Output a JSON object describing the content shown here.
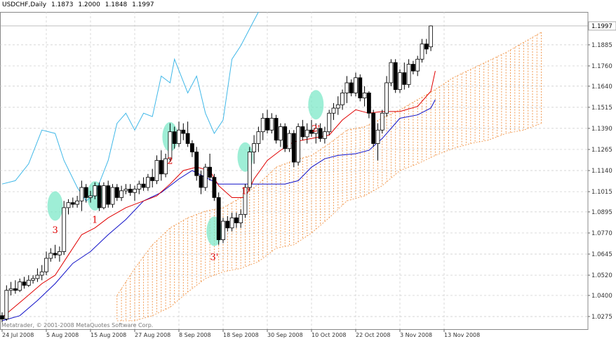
{
  "header": {
    "symbol": "USDCHF,Daily",
    "ohlc": [
      "1.1873",
      "1.2000",
      "1.1848",
      "1.1997"
    ]
  },
  "copyright": "Metatrader, © 2001-2008 MetaQuotes Software Corp.",
  "colors": {
    "background": "#ffffff",
    "grid": "#c8c8c8",
    "candle": "#000000",
    "tenkan": "#e00000",
    "kijun": "#1010c8",
    "chikou": "#40b8e8",
    "cloud": "#f09040",
    "highlight": "#7ee8c8",
    "marker_text": "#e00000"
  },
  "chart_data": {
    "type": "candlestick",
    "ylim": [
      1.02,
      1.208
    ],
    "y_ticks": [
      "1.1885",
      "1.1760",
      "1.1640",
      "1.1515",
      "1.1390",
      "1.1265",
      "1.1140",
      "1.1015",
      "1.0895",
      "1.0770",
      "1.0645",
      "1.0520",
      "1.0400",
      "1.0275"
    ],
    "last_price": "1.1997",
    "x_labels": [
      {
        "i": 0,
        "text": "24 Jul 2008"
      },
      {
        "i": 10,
        "text": "5 Aug 2008"
      },
      {
        "i": 20,
        "text": "15 Aug 2008"
      },
      {
        "i": 30,
        "text": "27 Aug 2008"
      },
      {
        "i": 40,
        "text": "8 Sep 2008"
      },
      {
        "i": 50,
        "text": "18 Sep 2008"
      },
      {
        "i": 60,
        "text": "30 Sep 2008"
      },
      {
        "i": 70,
        "text": "10 Oct 2008"
      },
      {
        "i": 80,
        "text": "22 Oct 2008"
      },
      {
        "i": 90,
        "text": "3 Nov 2008"
      },
      {
        "i": 100,
        "text": "13 Nov 2008"
      }
    ],
    "candles": [
      [
        1.028,
        1.03,
        1.024,
        1.026
      ],
      [
        1.026,
        1.046,
        1.025,
        1.043
      ],
      [
        1.043,
        1.048,
        1.04,
        1.044
      ],
      [
        1.044,
        1.049,
        1.041,
        1.043
      ],
      [
        1.043,
        1.05,
        1.042,
        1.048
      ],
      [
        1.048,
        1.051,
        1.044,
        1.046
      ],
      [
        1.046,
        1.052,
        1.045,
        1.049
      ],
      [
        1.049,
        1.052,
        1.047,
        1.05
      ],
      [
        1.05,
        1.056,
        1.048,
        1.052
      ],
      [
        1.052,
        1.058,
        1.049,
        1.054
      ],
      [
        1.054,
        1.066,
        1.052,
        1.062
      ],
      [
        1.062,
        1.068,
        1.06,
        1.065
      ],
      [
        1.065,
        1.07,
        1.062,
        1.064
      ],
      [
        1.064,
        1.069,
        1.06,
        1.066
      ],
      [
        1.066,
        1.096,
        1.064,
        1.092
      ],
      [
        1.092,
        1.097,
        1.088,
        1.095
      ],
      [
        1.095,
        1.098,
        1.092,
        1.094
      ],
      [
        1.094,
        1.099,
        1.092,
        1.096
      ],
      [
        1.096,
        1.108,
        1.09,
        1.104
      ],
      [
        1.104,
        1.106,
        1.095,
        1.098
      ],
      [
        1.098,
        1.102,
        1.095,
        1.099
      ],
      [
        1.099,
        1.107,
        1.097,
        1.105
      ],
      [
        1.105,
        1.107,
        1.09,
        1.092
      ],
      [
        1.092,
        1.107,
        1.091,
        1.105
      ],
      [
        1.105,
        1.108,
        1.092,
        1.094
      ],
      [
        1.094,
        1.106,
        1.092,
        1.104
      ],
      [
        1.104,
        1.106,
        1.096,
        1.098
      ],
      [
        1.098,
        1.105,
        1.096,
        1.102
      ],
      [
        1.102,
        1.106,
        1.1,
        1.103
      ],
      [
        1.103,
        1.106,
        1.099,
        1.101
      ],
      [
        1.101,
        1.105,
        1.096,
        1.103
      ],
      [
        1.103,
        1.108,
        1.1,
        1.106
      ],
      [
        1.106,
        1.11,
        1.102,
        1.104
      ],
      [
        1.104,
        1.112,
        1.102,
        1.11
      ],
      [
        1.11,
        1.115,
        1.104,
        1.108
      ],
      [
        1.108,
        1.123,
        1.106,
        1.12
      ],
      [
        1.12,
        1.126,
        1.108,
        1.112
      ],
      [
        1.112,
        1.124,
        1.11,
        1.121
      ],
      [
        1.121,
        1.142,
        1.119,
        1.137
      ],
      [
        1.137,
        1.14,
        1.127,
        1.13
      ],
      [
        1.13,
        1.143,
        1.128,
        1.138
      ],
      [
        1.138,
        1.142,
        1.132,
        1.136
      ],
      [
        1.136,
        1.143,
        1.128,
        1.13
      ],
      [
        1.13,
        1.132,
        1.122,
        1.125
      ],
      [
        1.125,
        1.128,
        1.108,
        1.111
      ],
      [
        1.111,
        1.114,
        1.1,
        1.104
      ],
      [
        1.104,
        1.118,
        1.102,
        1.116
      ],
      [
        1.116,
        1.124,
        1.108,
        1.11
      ],
      [
        1.11,
        1.112,
        1.096,
        1.098
      ],
      [
        1.098,
        1.101,
        1.07,
        1.073
      ],
      [
        1.073,
        1.086,
        1.071,
        1.084
      ],
      [
        1.084,
        1.087,
        1.078,
        1.08
      ],
      [
        1.08,
        1.089,
        1.078,
        1.086
      ],
      [
        1.086,
        1.089,
        1.08,
        1.083
      ],
      [
        1.083,
        1.091,
        1.08,
        1.088
      ],
      [
        1.088,
        1.106,
        1.086,
        1.104
      ],
      [
        1.104,
        1.128,
        1.102,
        1.125
      ],
      [
        1.125,
        1.135,
        1.118,
        1.13
      ],
      [
        1.13,
        1.14,
        1.125,
        1.137
      ],
      [
        1.137,
        1.148,
        1.132,
        1.145
      ],
      [
        1.145,
        1.15,
        1.136,
        1.138
      ],
      [
        1.138,
        1.148,
        1.136,
        1.145
      ],
      [
        1.145,
        1.147,
        1.13,
        1.132
      ],
      [
        1.132,
        1.142,
        1.128,
        1.14
      ],
      [
        1.14,
        1.142,
        1.125,
        1.127
      ],
      [
        1.127,
        1.138,
        1.125,
        1.136
      ],
      [
        1.136,
        1.138,
        1.116,
        1.119
      ],
      [
        1.119,
        1.142,
        1.117,
        1.14
      ],
      [
        1.14,
        1.144,
        1.132,
        1.134
      ],
      [
        1.134,
        1.142,
        1.13,
        1.138
      ],
      [
        1.138,
        1.144,
        1.134,
        1.136
      ],
      [
        1.136,
        1.142,
        1.13,
        1.139
      ],
      [
        1.139,
        1.142,
        1.131,
        1.133
      ],
      [
        1.133,
        1.14,
        1.13,
        1.137
      ],
      [
        1.137,
        1.15,
        1.135,
        1.148
      ],
      [
        1.148,
        1.154,
        1.144,
        1.151
      ],
      [
        1.151,
        1.158,
        1.147,
        1.153
      ],
      [
        1.153,
        1.162,
        1.15,
        1.16
      ],
      [
        1.16,
        1.17,
        1.154,
        1.166
      ],
      [
        1.166,
        1.168,
        1.158,
        1.16
      ],
      [
        1.16,
        1.172,
        1.158,
        1.169
      ],
      [
        1.169,
        1.171,
        1.155,
        1.157
      ],
      [
        1.157,
        1.164,
        1.152,
        1.16
      ],
      [
        1.16,
        1.161,
        1.145,
        1.148
      ],
      [
        1.148,
        1.15,
        1.128,
        1.13
      ],
      [
        1.13,
        1.142,
        1.12,
        1.138
      ],
      [
        1.138,
        1.15,
        1.136,
        1.148
      ],
      [
        1.148,
        1.17,
        1.146,
        1.166
      ],
      [
        1.166,
        1.18,
        1.164,
        1.178
      ],
      [
        1.178,
        1.18,
        1.16,
        1.162
      ],
      [
        1.162,
        1.174,
        1.16,
        1.172
      ],
      [
        1.172,
        1.178,
        1.162,
        1.165
      ],
      [
        1.165,
        1.18,
        1.163,
        1.177
      ],
      [
        1.177,
        1.179,
        1.171,
        1.173
      ],
      [
        1.173,
        1.182,
        1.17,
        1.18
      ],
      [
        1.18,
        1.192,
        1.178,
        1.189
      ],
      [
        1.189,
        1.192,
        1.183,
        1.186
      ],
      [
        1.1873,
        1.2,
        1.1848,
        1.1997
      ]
    ],
    "tenkan": [
      [
        0,
        1.027
      ],
      [
        5,
        1.038
      ],
      [
        9,
        1.047
      ],
      [
        12,
        1.052
      ],
      [
        15,
        1.064
      ],
      [
        18,
        1.076
      ],
      [
        21,
        1.08
      ],
      [
        24,
        1.086
      ],
      [
        28,
        1.092
      ],
      [
        32,
        1.096
      ],
      [
        35,
        1.099
      ],
      [
        38,
        1.106
      ],
      [
        41,
        1.114
      ],
      [
        44,
        1.116
      ],
      [
        47,
        1.114
      ],
      [
        49,
        1.105
      ],
      [
        52,
        1.098
      ],
      [
        55,
        1.098
      ],
      [
        57,
        1.109
      ],
      [
        60,
        1.12
      ],
      [
        63,
        1.126
      ],
      [
        66,
        1.131
      ],
      [
        70,
        1.133
      ],
      [
        74,
        1.135
      ],
      [
        77,
        1.144
      ],
      [
        80,
        1.15
      ],
      [
        83,
        1.148
      ],
      [
        86,
        1.149
      ],
      [
        90,
        1.149
      ],
      [
        94,
        1.152
      ],
      [
        97,
        1.161
      ],
      [
        98,
        1.173
      ]
    ],
    "kijun": [
      [
        0,
        1.025
      ],
      [
        4,
        1.028
      ],
      [
        8,
        1.037
      ],
      [
        12,
        1.047
      ],
      [
        16,
        1.059
      ],
      [
        20,
        1.066
      ],
      [
        24,
        1.076
      ],
      [
        28,
        1.085
      ],
      [
        32,
        1.096
      ],
      [
        36,
        1.101
      ],
      [
        40,
        1.109
      ],
      [
        43,
        1.114
      ],
      [
        46,
        1.11
      ],
      [
        49,
        1.106
      ],
      [
        52,
        1.106
      ],
      [
        56,
        1.106
      ],
      [
        60,
        1.106
      ],
      [
        64,
        1.106
      ],
      [
        67,
        1.108
      ],
      [
        70,
        1.116
      ],
      [
        73,
        1.121
      ],
      [
        76,
        1.123
      ],
      [
        80,
        1.124
      ],
      [
        83,
        1.126
      ],
      [
        86,
        1.133
      ],
      [
        90,
        1.145
      ],
      [
        94,
        1.147
      ],
      [
        97,
        1.151
      ],
      [
        98,
        1.156
      ]
    ],
    "chikou": [
      [
        0,
        1.106
      ],
      [
        3,
        1.108
      ],
      [
        6,
        1.118
      ],
      [
        9,
        1.138
      ],
      [
        12,
        1.136
      ],
      [
        14,
        1.12
      ],
      [
        17,
        1.104
      ],
      [
        19,
        1.096
      ],
      [
        21,
        1.1
      ],
      [
        24,
        1.12
      ],
      [
        26,
        1.142
      ],
      [
        28,
        1.148
      ],
      [
        30,
        1.138
      ],
      [
        32,
        1.148
      ],
      [
        34,
        1.146
      ],
      [
        36,
        1.17
      ],
      [
        38,
        1.166
      ],
      [
        39,
        1.18
      ],
      [
        42,
        1.16
      ],
      [
        44,
        1.17
      ],
      [
        46,
        1.148
      ],
      [
        48,
        1.136
      ],
      [
        50,
        1.144
      ],
      [
        52,
        1.18
      ],
      [
        54,
        1.188
      ],
      [
        56,
        1.198
      ],
      [
        58,
        1.208
      ]
    ],
    "cloud": {
      "start": 26,
      "upper": [
        [
          26,
          1.04
        ],
        [
          30,
          1.056
        ],
        [
          34,
          1.07
        ],
        [
          38,
          1.08
        ],
        [
          42,
          1.086
        ],
        [
          46,
          1.09
        ],
        [
          50,
          1.092
        ],
        [
          54,
          1.098
        ],
        [
          58,
          1.106
        ],
        [
          62,
          1.116
        ],
        [
          66,
          1.12
        ],
        [
          70,
          1.123
        ],
        [
          74,
          1.13
        ],
        [
          78,
          1.138
        ],
        [
          82,
          1.14
        ],
        [
          86,
          1.145
        ],
        [
          90,
          1.15
        ],
        [
          94,
          1.156
        ],
        [
          98,
          1.162
        ],
        [
          102,
          1.169
        ],
        [
          106,
          1.174
        ],
        [
          110,
          1.179
        ],
        [
          114,
          1.184
        ],
        [
          118,
          1.19
        ],
        [
          122,
          1.196
        ]
      ],
      "lower": [
        [
          26,
          1.025
        ],
        [
          30,
          1.025
        ],
        [
          34,
          1.028
        ],
        [
          38,
          1.033
        ],
        [
          42,
          1.042
        ],
        [
          46,
          1.05
        ],
        [
          50,
          1.054
        ],
        [
          54,
          1.056
        ],
        [
          58,
          1.06
        ],
        [
          62,
          1.068
        ],
        [
          66,
          1.07
        ],
        [
          70,
          1.077
        ],
        [
          74,
          1.086
        ],
        [
          78,
          1.096
        ],
        [
          82,
          1.099
        ],
        [
          86,
          1.105
        ],
        [
          90,
          1.114
        ],
        [
          94,
          1.118
        ],
        [
          98,
          1.123
        ],
        [
          102,
          1.127
        ],
        [
          106,
          1.13
        ],
        [
          110,
          1.132
        ],
        [
          114,
          1.136
        ],
        [
          118,
          1.138
        ],
        [
          122,
          1.142
        ]
      ]
    },
    "markers": [
      {
        "text": "3",
        "i": 12,
        "price": 1.077,
        "hl": 1.093
      },
      {
        "text": "1",
        "i": 21,
        "price": 1.083,
        "hl": 1.099
      },
      {
        "text": "2",
        "i": 38,
        "price": 1.118,
        "hl": 1.134
      },
      {
        "text": "3'",
        "i": 48,
        "price": 1.061,
        "hl": 1.078
      },
      {
        "text": "1'",
        "i": 55,
        "price": 1.1,
        "hl": 1.122
      },
      {
        "text": "2'",
        "i": 71,
        "price": 1.137,
        "hl": 1.153
      }
    ]
  }
}
